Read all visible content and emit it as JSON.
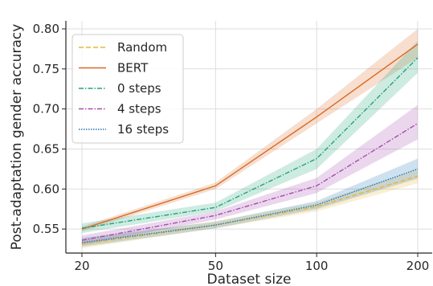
{
  "chart_data": {
    "type": "line",
    "xlabel": "Dataset size",
    "ylabel": "Post-adaptation gender accuracy",
    "x_scale": "log",
    "x": [
      20,
      50,
      100,
      200
    ],
    "x_tick_labels": [
      "20",
      "50",
      "100",
      "200"
    ],
    "ylim": [
      0.52,
      0.81
    ],
    "y_ticks": [
      0.55,
      0.6,
      0.65,
      0.7,
      0.75,
      0.8
    ],
    "y_tick_labels": [
      "0.55",
      "0.60",
      "0.65",
      "0.70",
      "0.75",
      "0.80"
    ],
    "grid": true,
    "legend_position": "top-left",
    "series": [
      {
        "name": "Random",
        "color": "#E9B535",
        "dash": "dashed",
        "values": [
          0.531,
          0.555,
          0.578,
          0.616
        ],
        "band_low": [
          0.526,
          0.551,
          0.572,
          0.607
        ],
        "band_high": [
          0.537,
          0.56,
          0.583,
          0.624
        ]
      },
      {
        "name": "BERT",
        "color": "#D96A25",
        "dash": "solid",
        "values": [
          0.55,
          0.604,
          0.69,
          0.781
        ],
        "band_low": [
          0.547,
          0.6,
          0.682,
          0.764
        ],
        "band_high": [
          0.553,
          0.608,
          0.7,
          0.8
        ]
      },
      {
        "name": "0 steps",
        "color": "#22A37A",
        "dash": "dashdot",
        "values": [
          0.551,
          0.577,
          0.638,
          0.764
        ],
        "band_low": [
          0.545,
          0.572,
          0.625,
          0.745
        ],
        "band_high": [
          0.557,
          0.583,
          0.65,
          0.785
        ]
      },
      {
        "name": "4 steps",
        "color": "#A64BAE",
        "dash": "dashdot",
        "values": [
          0.536,
          0.567,
          0.604,
          0.682
        ],
        "band_low": [
          0.53,
          0.562,
          0.595,
          0.662
        ],
        "band_high": [
          0.542,
          0.572,
          0.614,
          0.705
        ]
      },
      {
        "name": "16 steps",
        "color": "#1F77B4",
        "dash": "dotted",
        "values": [
          0.533,
          0.555,
          0.58,
          0.625
        ],
        "band_low": [
          0.528,
          0.551,
          0.575,
          0.613
        ],
        "band_high": [
          0.539,
          0.559,
          0.585,
          0.638
        ]
      }
    ]
  }
}
